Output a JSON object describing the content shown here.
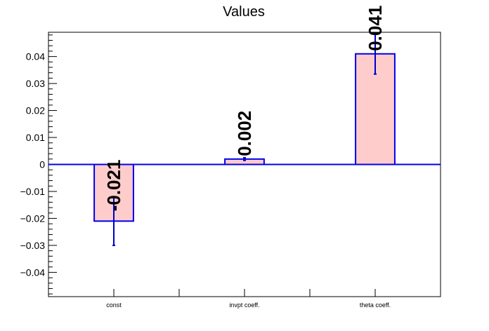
{
  "chart_data": {
    "type": "bar",
    "title": "Values",
    "xlabel": "",
    "ylabel": "",
    "categories": [
      "const",
      "invpt coeff.",
      "theta coeff."
    ],
    "values": [
      -0.021,
      0.002,
      0.041
    ],
    "errors": [
      0.009,
      0.0005,
      0.0075
    ],
    "data_labels": [
      "-0.021",
      "0.002",
      "0.041"
    ],
    "ylim": [
      -0.049,
      0.049
    ],
    "yticks": [
      -0.04,
      -0.03,
      -0.02,
      -0.01,
      0,
      0.01,
      0.02,
      0.03,
      0.04
    ],
    "ytick_labels": [
      "−0.04",
      "−0.03",
      "−0.02",
      "−0.01",
      "0",
      "0.01",
      "0.02",
      "0.03",
      "0.04"
    ],
    "grid": false,
    "colors": {
      "bar_fill": "#ffcccc",
      "bar_edge": "#0000ee",
      "error_bar": "#0000cc",
      "zero_line": "#0000ee",
      "axis": "#000000"
    }
  }
}
